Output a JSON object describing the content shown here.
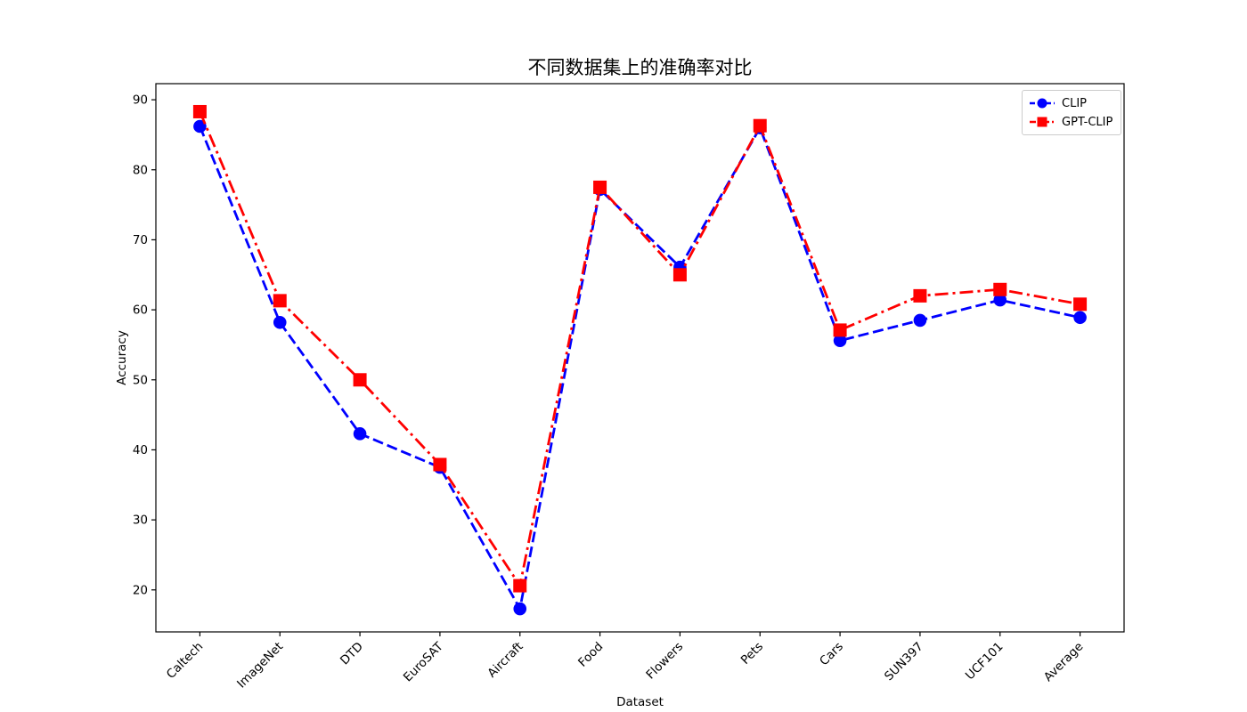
{
  "chart_data": {
    "type": "line",
    "title": "不同数据集上的准确率对比",
    "xlabel": "Dataset",
    "ylabel": "Accuracy",
    "categories": [
      "Caltech",
      "ImageNet",
      "DTD",
      "EuroSAT",
      "Aircraft",
      "Food",
      "Flowers",
      "Pets",
      "Cars",
      "SUN397",
      "UCF101",
      "Average"
    ],
    "yticks": [
      20,
      30,
      40,
      50,
      60,
      70,
      80,
      90
    ],
    "ylim": [
      14,
      92.3
    ],
    "grid": false,
    "legend_position": "upper right",
    "series": [
      {
        "name": "CLIP",
        "color": "#0000ff",
        "linestyle": "dashed",
        "marker": "circle",
        "values": [
          86.2,
          58.2,
          42.3,
          37.5,
          17.3,
          77.2,
          66.1,
          86.0,
          55.6,
          58.5,
          61.4,
          58.9
        ]
      },
      {
        "name": "GPT-CLIP",
        "color": "#ff0000",
        "linestyle": "dashdot",
        "marker": "square",
        "values": [
          88.3,
          61.3,
          50.0,
          37.9,
          20.6,
          77.5,
          65.0,
          86.3,
          57.1,
          62.0,
          62.9,
          60.8
        ]
      }
    ]
  }
}
